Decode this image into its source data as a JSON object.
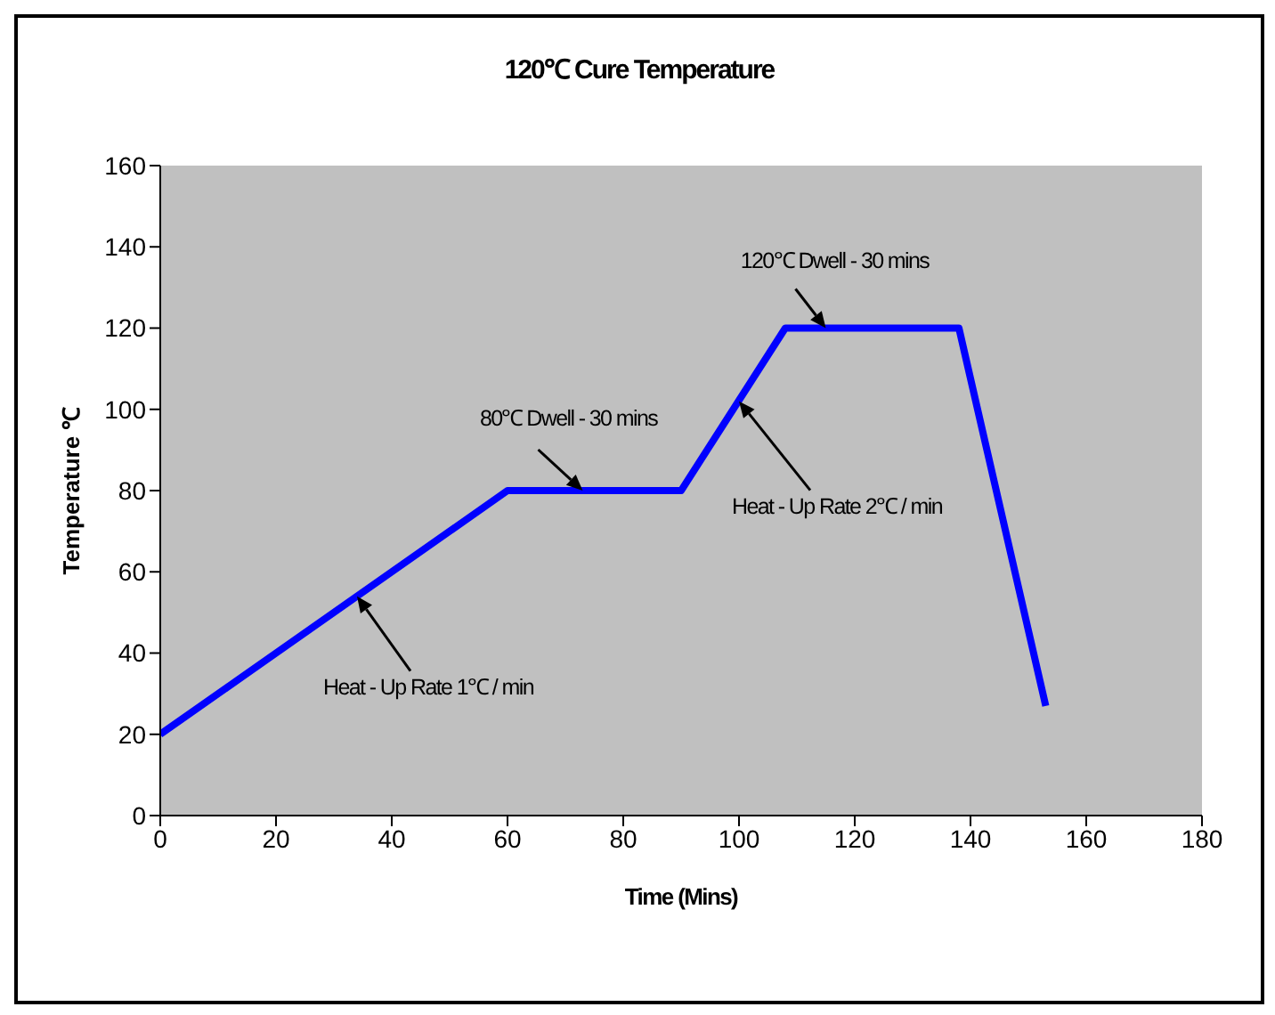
{
  "chart_data": {
    "type": "line",
    "title": "120℃ Cure Temperature",
    "xlabel": "Time (Mins)",
    "ylabel": "Temperature ℃",
    "x": [
      0,
      60,
      90,
      108,
      138,
      153
    ],
    "series": [
      {
        "color": "#0000ff",
        "values": [
          20,
          80,
          80,
          120,
          120,
          27
        ]
      }
    ],
    "xlim": [
      0,
      180
    ],
    "xticks": [
      0,
      20,
      40,
      60,
      80,
      100,
      120,
      140,
      160,
      180
    ],
    "ylim": [
      0,
      160
    ],
    "yticks": [
      0,
      20,
      40,
      60,
      80,
      100,
      120,
      140,
      160
    ],
    "marker": "none",
    "line_style": "solid",
    "annotations": [
      {
        "text": "Heat - Up Rate  1℃ / min",
        "x": 34,
        "y": 54
      },
      {
        "text": "80℃ Dwell - 30 mins",
        "x": 73,
        "y": 80
      },
      {
        "text": "Heat - Up Rate 2℃ / min",
        "x": 100,
        "y": 102
      },
      {
        "text": "120℃ Dwell - 30 mins",
        "x": 115,
        "y": 120
      }
    ]
  }
}
